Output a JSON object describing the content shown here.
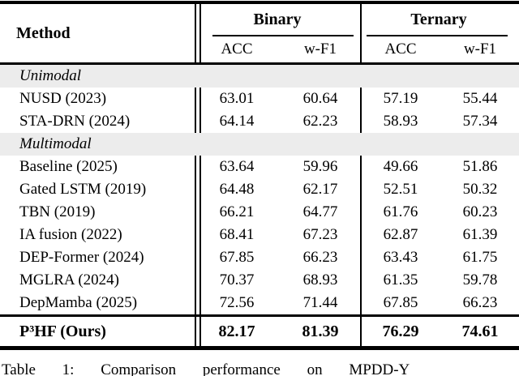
{
  "table": {
    "header": {
      "method": "Method",
      "groups": [
        {
          "label": "Binary"
        },
        {
          "label": "Ternary"
        }
      ],
      "subheaders": [
        "ACC",
        "w-F1",
        "ACC",
        "w-F1"
      ]
    },
    "rows": [
      {
        "type": "section",
        "label": "Unimodal"
      },
      {
        "type": "data",
        "method": "NUSD (2023)",
        "values": [
          "63.01",
          "60.64",
          "57.19",
          "55.44"
        ]
      },
      {
        "type": "data",
        "method": "STA-DRN (2024)",
        "values": [
          "64.14",
          "62.23",
          "58.93",
          "57.34"
        ]
      },
      {
        "type": "section",
        "label": "Multimodal"
      },
      {
        "type": "data",
        "method": "Baseline (2025)",
        "values": [
          "63.64",
          "59.96",
          "49.66",
          "51.86"
        ]
      },
      {
        "type": "data",
        "method": "Gated LSTM (2019)",
        "values": [
          "64.48",
          "62.17",
          "52.51",
          "50.32"
        ]
      },
      {
        "type": "data",
        "method": "TBN (2019)",
        "values": [
          "66.21",
          "64.77",
          "61.76",
          "60.23"
        ]
      },
      {
        "type": "data",
        "method": "IA fusion (2022)",
        "values": [
          "68.41",
          "67.23",
          "62.87",
          "61.39"
        ]
      },
      {
        "type": "data",
        "method": "DEP-Former (2024)",
        "values": [
          "67.85",
          "66.23",
          "63.43",
          "61.75"
        ]
      },
      {
        "type": "data",
        "method": "MGLRA (2024)",
        "values": [
          "70.37",
          "68.93",
          "61.35",
          "59.78"
        ]
      },
      {
        "type": "data",
        "method": "DepMamba (2025)",
        "values": [
          "72.56",
          "71.44",
          "67.85",
          "66.23"
        ]
      }
    ],
    "ours": {
      "method": "P³HF (Ours)",
      "values": [
        "82.17",
        "81.39",
        "76.29",
        "74.61"
      ]
    },
    "caption": "Table 1: Comparison performance on MPDD-Y"
  },
  "colors": {
    "section_row_bg": "#ececec",
    "rule": "#000000",
    "text": "#000000",
    "background": "#ffffff"
  }
}
